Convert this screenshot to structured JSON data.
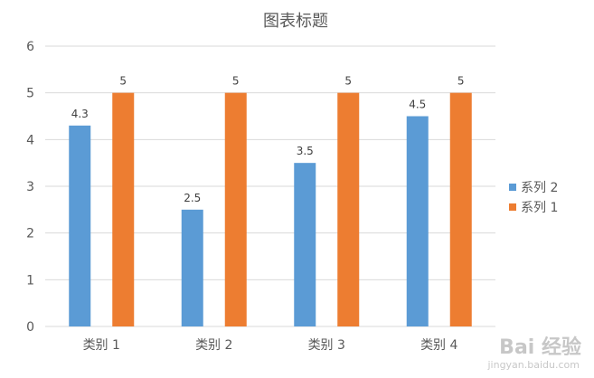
{
  "chart_data": {
    "type": "bar",
    "title": "图表标题",
    "categories": [
      "类别 1",
      "类别 2",
      "类别 3",
      "类别 4"
    ],
    "series": [
      {
        "name": "系列 2",
        "values": [
          4.3,
          2.5,
          3.5,
          4.5
        ],
        "color": "#5b9bd5"
      },
      {
        "name": "系列 1",
        "values": [
          5,
          5,
          5,
          5
        ],
        "color": "#ed7d31"
      }
    ],
    "ylim": [
      0,
      6
    ],
    "yticks": [
      "0",
      "1",
      "2",
      "3",
      "4",
      "5",
      "6"
    ],
    "data_labels": [
      [
        "4.3",
        "2.5",
        "3.5",
        "4.5"
      ],
      [
        "5",
        "5",
        "5",
        "5"
      ]
    ],
    "grid": true,
    "legend": "right"
  },
  "watermark": {
    "main": "Bai 经验",
    "sub": "jingyan.baidu.com"
  }
}
